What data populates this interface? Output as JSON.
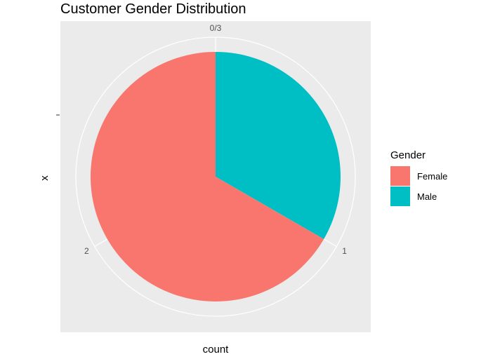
{
  "chart_data": {
    "type": "pie",
    "title": "Customer Gender Distribution",
    "xlabel": "count",
    "ylabel": "x",
    "categories": [
      "Female",
      "Male"
    ],
    "values": [
      2,
      1
    ],
    "total": 3,
    "angle_ticks": [
      "0/3",
      "1",
      "2"
    ],
    "angle_tick_values": [
      0,
      1,
      2
    ],
    "legend": {
      "title": "Gender",
      "position": "right"
    },
    "colors": {
      "Female": "#F8766D",
      "Male": "#00BFC4"
    },
    "panel_background": "#EBEBEB",
    "grid": true
  }
}
